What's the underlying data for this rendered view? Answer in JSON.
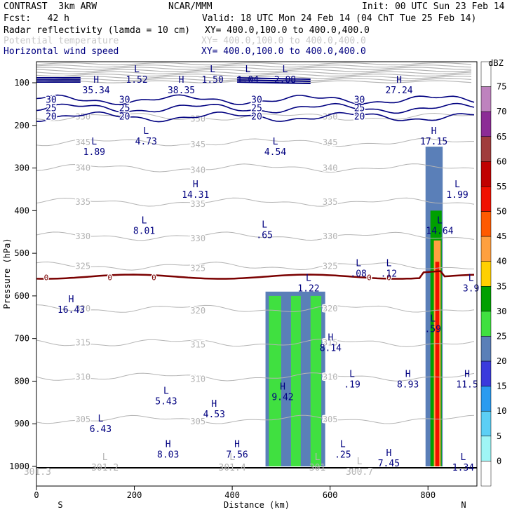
{
  "header": {
    "line1_left": "CONTRAST  3km ARW",
    "line1_center": "NCAR/MMM",
    "line1_right": "Init: 00 UTC Sun 23 Feb 14",
    "line2_left": "Fcst:   42 h",
    "line2_right": "Valid: 18 UTC Mon 24 Feb 14 (04 ChT Tue 25 Feb 14)",
    "field1_name": "Radar reflectivity (lamda = 10 cm)",
    "field1_xy": "XY= 400.0,100.0 to 400.0,400.0",
    "field2_name": "Potential temperature",
    "field2_xy": "XY= 400.0,100.0 to 400.0,400.0",
    "field3_name": "Horizontal wind speed",
    "field3_xy": "XY= 400.0,100.0 to 400.0,400.0"
  },
  "colors": {
    "theta": "#b4b4b4",
    "wind": "#000080",
    "freezing": "#7a0000",
    "ground": "#000000"
  },
  "chart_data": {
    "type": "cross-section",
    "xlabel": "Distance (km)",
    "ylabel": "Pressure (hPa)",
    "xlim": [
      0,
      900
    ],
    "ylim": [
      1000,
      60
    ],
    "x_ticks": [
      0,
      200,
      400,
      600,
      800
    ],
    "y_ticks": [
      100,
      200,
      300,
      400,
      500,
      600,
      700,
      800,
      900,
      1000
    ],
    "left_end": "S",
    "right_end": "N",
    "colorbar": {
      "unit": "dBZ",
      "levels": [
        0,
        5,
        10,
        15,
        20,
        25,
        30,
        35,
        40,
        45,
        50,
        55,
        60,
        65,
        70,
        75
      ],
      "colors": [
        "#ffffff",
        "#9ff5f5",
        "#5ccff5",
        "#2a9bf0",
        "#3a3adc",
        "#5a7fb8",
        "#40e040",
        "#00a000",
        "#ffd000",
        "#ffa040",
        "#ff5a00",
        "#f01000",
        "#c00000",
        "#a03c3c",
        "#8c2c96",
        "#be82be",
        "#ffffff"
      ]
    },
    "reflectivity_regions": [
      {
        "x0": 468,
        "x1": 590,
        "p0": 590,
        "p1": 1000,
        "dbz": 20
      },
      {
        "x0": 475,
        "x1": 500,
        "p0": 600,
        "p1": 1000,
        "dbz": 25
      },
      {
        "x0": 520,
        "x1": 540,
        "p0": 600,
        "p1": 1000,
        "dbz": 25
      },
      {
        "x0": 560,
        "x1": 582,
        "p0": 600,
        "p1": 1000,
        "dbz": 25
      },
      {
        "x0": 795,
        "x1": 830,
        "p0": 250,
        "p1": 1000,
        "dbz": 20
      },
      {
        "x0": 805,
        "x1": 828,
        "p0": 400,
        "p1": 1000,
        "dbz": 30
      },
      {
        "x0": 812,
        "x1": 826,
        "p0": 470,
        "p1": 1000,
        "dbz": 40
      },
      {
        "x0": 815,
        "x1": 823,
        "p0": 520,
        "p1": 1000,
        "dbz": 50
      }
    ],
    "theta_contours": [
      {
        "value": "350",
        "p": 180
      },
      {
        "value": "345",
        "p": 240
      },
      {
        "value": "340",
        "p": 300
      },
      {
        "value": "335",
        "p": 380
      },
      {
        "value": "330",
        "p": 460
      },
      {
        "value": "325",
        "p": 530
      },
      {
        "value": "320",
        "p": 630
      },
      {
        "value": "315",
        "p": 710
      },
      {
        "value": "310",
        "p": 790
      },
      {
        "value": "305",
        "p": 890
      }
    ],
    "wind_contours": [
      {
        "value": "20",
        "p": 180
      },
      {
        "value": "25",
        "p": 160
      },
      {
        "value": "30",
        "p": 140
      }
    ],
    "freezing_level": {
      "value": "0",
      "p": 555
    },
    "annotations": [
      {
        "t": "L",
        "v": "1.52",
        "x": 205,
        "p": 75,
        "c": "navy"
      },
      {
        "t": "L",
        "v": "1.50",
        "x": 360,
        "p": 75,
        "c": "navy"
      },
      {
        "t": "L",
        "v": "1.04",
        "x": 432,
        "p": 75,
        "c": "navy"
      },
      {
        "t": "L",
        "v": "2.08",
        "x": 508,
        "p": 75,
        "c": "navy"
      },
      {
        "t": "H",
        "v": "35.34",
        "x": 122,
        "p": 100,
        "c": "navy"
      },
      {
        "t": "H",
        "v": "38.35",
        "x": 296,
        "p": 100,
        "c": "navy"
      },
      {
        "t": "H",
        "v": "27.24",
        "x": 741,
        "p": 100,
        "c": "navy"
      },
      {
        "t": "H",
        "v": "17.15",
        "x": 812,
        "p": 220,
        "c": "navy"
      },
      {
        "t": "L",
        "v": "1.89",
        "x": 118,
        "p": 245,
        "c": "navy"
      },
      {
        "t": "L",
        "v": "4.73",
        "x": 224,
        "p": 220,
        "c": "navy"
      },
      {
        "t": "L",
        "v": "4.54",
        "x": 488,
        "p": 245,
        "c": "navy"
      },
      {
        "t": "H",
        "v": "14.31",
        "x": 325,
        "p": 345,
        "c": "navy"
      },
      {
        "t": "L",
        "v": "1.99",
        "x": 860,
        "p": 345,
        "c": "navy"
      },
      {
        "t": "L",
        "v": "8.01",
        "x": 220,
        "p": 430,
        "c": "navy"
      },
      {
        "t": "L",
        "v": ".65",
        "x": 466,
        "p": 440,
        "c": "navy"
      },
      {
        "t": "L",
        "v": "14.64",
        "x": 824,
        "p": 430,
        "c": "navy"
      },
      {
        "t": "L",
        "v": ".08",
        "x": 658,
        "p": 530,
        "c": "navy"
      },
      {
        "t": "L",
        "v": ".12",
        "x": 720,
        "p": 530,
        "c": "navy"
      },
      {
        "t": "L",
        "v": "1.22",
        "x": 556,
        "p": 565,
        "c": "navy"
      },
      {
        "t": "L",
        "v": "3.9",
        "x": 888,
        "p": 565,
        "c": "navy"
      },
      {
        "t": "H",
        "v": "16.43",
        "x": 71,
        "p": 615,
        "c": "navy"
      },
      {
        "t": "L",
        "v": ".59",
        "x": 810,
        "p": 660,
        "c": "navy"
      },
      {
        "t": "H",
        "v": "8.14",
        "x": 601,
        "p": 705,
        "c": "navy"
      },
      {
        "t": "L",
        "v": ".19",
        "x": 645,
        "p": 790,
        "c": "navy"
      },
      {
        "t": "H",
        "v": "8.93",
        "x": 759,
        "p": 790,
        "c": "navy"
      },
      {
        "t": "H",
        "v": "11.5",
        "x": 880,
        "p": 790,
        "c": "navy"
      },
      {
        "t": "H",
        "v": "9.42",
        "x": 503,
        "p": 820,
        "c": "navy"
      },
      {
        "t": "L",
        "v": "5.43",
        "x": 265,
        "p": 830,
        "c": "navy"
      },
      {
        "t": "H",
        "v": "4.53",
        "x": 363,
        "p": 860,
        "c": "navy"
      },
      {
        "t": "L",
        "v": "6.43",
        "x": 131,
        "p": 895,
        "c": "navy"
      },
      {
        "t": "H",
        "v": "8.03",
        "x": 269,
        "p": 955,
        "c": "navy"
      },
      {
        "t": "H",
        "v": "7.56",
        "x": 410,
        "p": 955,
        "c": "navy"
      },
      {
        "t": "L",
        "v": ".25",
        "x": 626,
        "p": 955,
        "c": "navy"
      },
      {
        "t": "H",
        "v": "7.45",
        "x": 720,
        "p": 975,
        "c": "navy"
      },
      {
        "t": "L",
        "v": "1.34",
        "x": 872,
        "p": 985,
        "c": "navy"
      },
      {
        "t": "L",
        "v": "301.2",
        "x": 140,
        "p": 985,
        "c": "grey"
      },
      {
        "t": "L",
        "v": "301.4",
        "x": 400,
        "p": 985,
        "c": "grey"
      },
      {
        "t": "L",
        "v": "301",
        "x": 574,
        "p": 985,
        "c": "grey"
      },
      {
        "t": "L",
        "v": "300.7",
        "x": 660,
        "p": 995,
        "c": "grey"
      },
      {
        "t": "",
        "v": "301.3",
        "x": 2,
        "p": 995,
        "c": "grey"
      }
    ]
  }
}
